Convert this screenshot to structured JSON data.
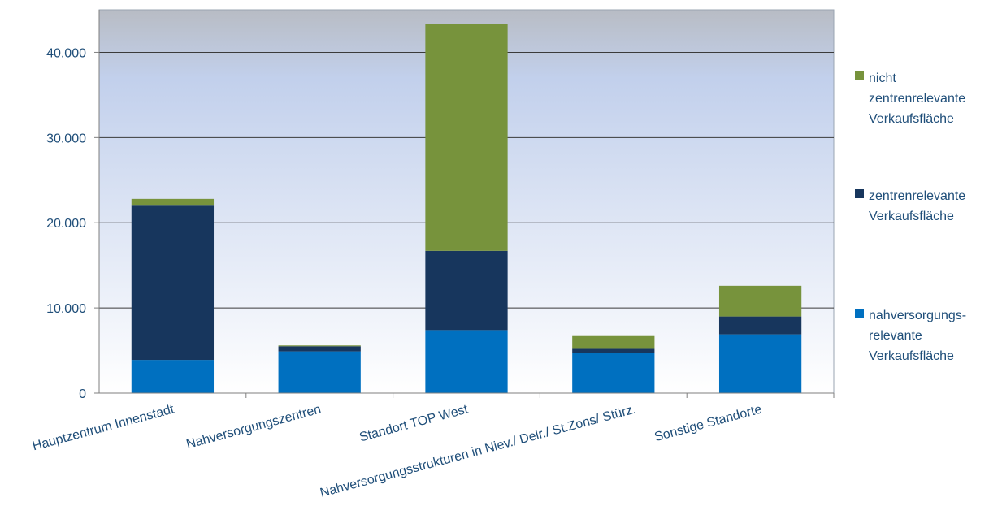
{
  "chart_data": {
    "type": "bar",
    "stacked": true,
    "categories": [
      "Hauptzentrum Innenstadt",
      "Nahversorgungszentren",
      "Standort TOP West",
      "Nahversorgungsstrukturen in Niev./ Delr./ St.Zons/ Stürz.",
      "Sonstige Standorte"
    ],
    "series": [
      {
        "name": "nahversorgungs-relevante Verkaufsfläche",
        "color": "#0070c0",
        "values": [
          3900,
          4900,
          7400,
          4700,
          6900
        ]
      },
      {
        "name": "zentrenrelevante Verkaufsfläche",
        "color": "#17365d",
        "values": [
          18100,
          600,
          9300,
          500,
          2100
        ]
      },
      {
        "name": "nicht zentrenrelevante Verkaufsfläche",
        "color": "#77933c",
        "values": [
          800,
          100,
          26600,
          1500,
          3600
        ]
      }
    ],
    "ylim": [
      0,
      45000
    ],
    "yticks": [
      0,
      10000,
      20000,
      30000,
      40000
    ],
    "ytick_labels": [
      "0",
      "10.000",
      "20.000",
      "30.000",
      "40.000"
    ],
    "grid": true,
    "legend_position": "right"
  },
  "legend": {
    "items": [
      {
        "label": "nicht\nzentrenrelevante\nVerkaufsfläche",
        "color": "#77933c"
      },
      {
        "label": "zentrenrelevante\nVerkaufsfläche",
        "color": "#17365d"
      },
      {
        "label": "nahversorgungs-\nrelevante\nVerkaufsfläche",
        "color": "#0070c0"
      }
    ]
  }
}
